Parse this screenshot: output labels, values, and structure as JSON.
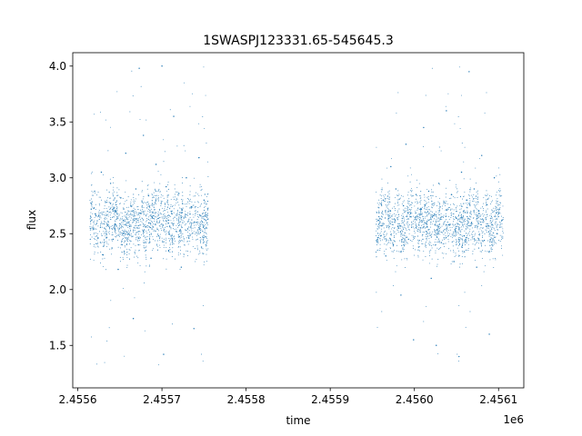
{
  "chart_data": {
    "type": "scatter",
    "title": "1SWASPJ123331.65-545645.3",
    "xlabel": "time",
    "ylabel": "flux",
    "x_offset_label": "1e6",
    "xlim": [
      2455594,
      2456130
    ],
    "ylim": [
      1.12,
      4.12
    ],
    "x_ticks": [
      2455600,
      2455700,
      2455800,
      2455900,
      2456000,
      2456100
    ],
    "x_tick_labels": [
      "2.4556",
      "2.4557",
      "2.4558",
      "2.4559",
      "2.4560",
      "2.4561"
    ],
    "y_ticks": [
      1.5,
      2.0,
      2.5,
      3.0,
      3.5,
      4.0
    ],
    "y_tick_labels": [
      "1.5",
      "2.0",
      "2.5",
      "3.0",
      "3.5",
      "4.0"
    ],
    "grid": false,
    "marker_color": "#1f77b4",
    "series": [
      {
        "observing_seasons": [
          {
            "x_range": [
              2455615,
              2455755
            ],
            "flux_center": 2.62,
            "flux_typical_range": [
              2.1,
              3.1
            ],
            "flux_extreme_range": [
              1.3,
              4.0
            ]
          },
          {
            "x_range": [
              2455955,
              2456105
            ],
            "flux_center": 2.6,
            "flux_typical_range": [
              2.1,
              3.1
            ],
            "flux_extreme_range": [
              1.3,
              4.0
            ]
          }
        ],
        "points": [
          [
            2455616,
            2.72
          ],
          [
            2455618,
            2.55
          ],
          [
            2455620,
            2.88
          ],
          [
            2455622,
            2.41
          ],
          [
            2455625,
            2.66
          ],
          [
            2455628,
            3.05
          ],
          [
            2455630,
            2.31
          ],
          [
            2455633,
            2.78
          ],
          [
            2455636,
            2.58
          ],
          [
            2455639,
            2.95
          ],
          [
            2455642,
            2.45
          ],
          [
            2455645,
            2.7
          ],
          [
            2455648,
            2.18
          ],
          [
            2455651,
            2.82
          ],
          [
            2455654,
            2.62
          ],
          [
            2455657,
            3.22
          ],
          [
            2455660,
            2.5
          ],
          [
            2455663,
            2.75
          ],
          [
            2455666,
            1.74
          ],
          [
            2455669,
            2.9
          ],
          [
            2455672,
            2.4
          ],
          [
            2455675,
            2.68
          ],
          [
            2455678,
            3.38
          ],
          [
            2455681,
            2.56
          ],
          [
            2455684,
            2.84
          ],
          [
            2455687,
            2.28
          ],
          [
            2455690,
            2.66
          ],
          [
            2455693,
            3.12
          ],
          [
            2455696,
            2.48
          ],
          [
            2455699,
            2.77
          ],
          [
            2455702,
            1.42
          ],
          [
            2455705,
            2.92
          ],
          [
            2455708,
            2.35
          ],
          [
            2455711,
            2.7
          ],
          [
            2455714,
            3.55
          ],
          [
            2455717,
            2.52
          ],
          [
            2455720,
            2.86
          ],
          [
            2455723,
            2.2
          ],
          [
            2455726,
            2.64
          ],
          [
            2455729,
            3.0
          ],
          [
            2455732,
            2.46
          ],
          [
            2455735,
            2.74
          ],
          [
            2455738,
            1.65
          ],
          [
            2455741,
            2.6
          ],
          [
            2455744,
            3.18
          ],
          [
            2455747,
            2.38
          ],
          [
            2455750,
            2.8
          ],
          [
            2455753,
            2.55
          ],
          [
            2455673,
            3.98
          ],
          [
            2455700,
            4.0
          ],
          [
            2455957,
            2.62
          ],
          [
            2455960,
            2.48
          ],
          [
            2455963,
            2.8
          ],
          [
            2455966,
            2.3
          ],
          [
            2455969,
            2.7
          ],
          [
            2455972,
            3.1
          ],
          [
            2455975,
            2.4
          ],
          [
            2455978,
            2.9
          ],
          [
            2455981,
            2.55
          ],
          [
            2455984,
            1.95
          ],
          [
            2455987,
            2.75
          ],
          [
            2455990,
            3.3
          ],
          [
            2455993,
            2.45
          ],
          [
            2455996,
            2.65
          ],
          [
            2455999,
            1.55
          ],
          [
            2456002,
            2.85
          ],
          [
            2456005,
            2.38
          ],
          [
            2456008,
            2.72
          ],
          [
            2456011,
            3.45
          ],
          [
            2456014,
            2.52
          ],
          [
            2456017,
            2.88
          ],
          [
            2456020,
            2.1
          ],
          [
            2456023,
            2.66
          ],
          [
            2456026,
            1.5
          ],
          [
            2456029,
            2.95
          ],
          [
            2456032,
            2.42
          ],
          [
            2456035,
            2.78
          ],
          [
            2456038,
            3.6
          ],
          [
            2456041,
            2.58
          ],
          [
            2456044,
            2.85
          ],
          [
            2456047,
            2.25
          ],
          [
            2456050,
            2.7
          ],
          [
            2456053,
            1.4
          ],
          [
            2456056,
            3.05
          ],
          [
            2456059,
            2.48
          ],
          [
            2456062,
            2.8
          ],
          [
            2456065,
            3.95
          ],
          [
            2456068,
            2.6
          ],
          [
            2456071,
            2.9
          ],
          [
            2456074,
            2.2
          ],
          [
            2456077,
            2.68
          ],
          [
            2456080,
            3.2
          ],
          [
            2456083,
            2.44
          ],
          [
            2456086,
            2.76
          ],
          [
            2456089,
            1.6
          ],
          [
            2456092,
            2.58
          ],
          [
            2456095,
            3.0
          ],
          [
            2456098,
            2.5
          ],
          [
            2456101,
            2.72
          ],
          [
            2456104,
            2.62
          ]
        ]
      }
    ]
  }
}
